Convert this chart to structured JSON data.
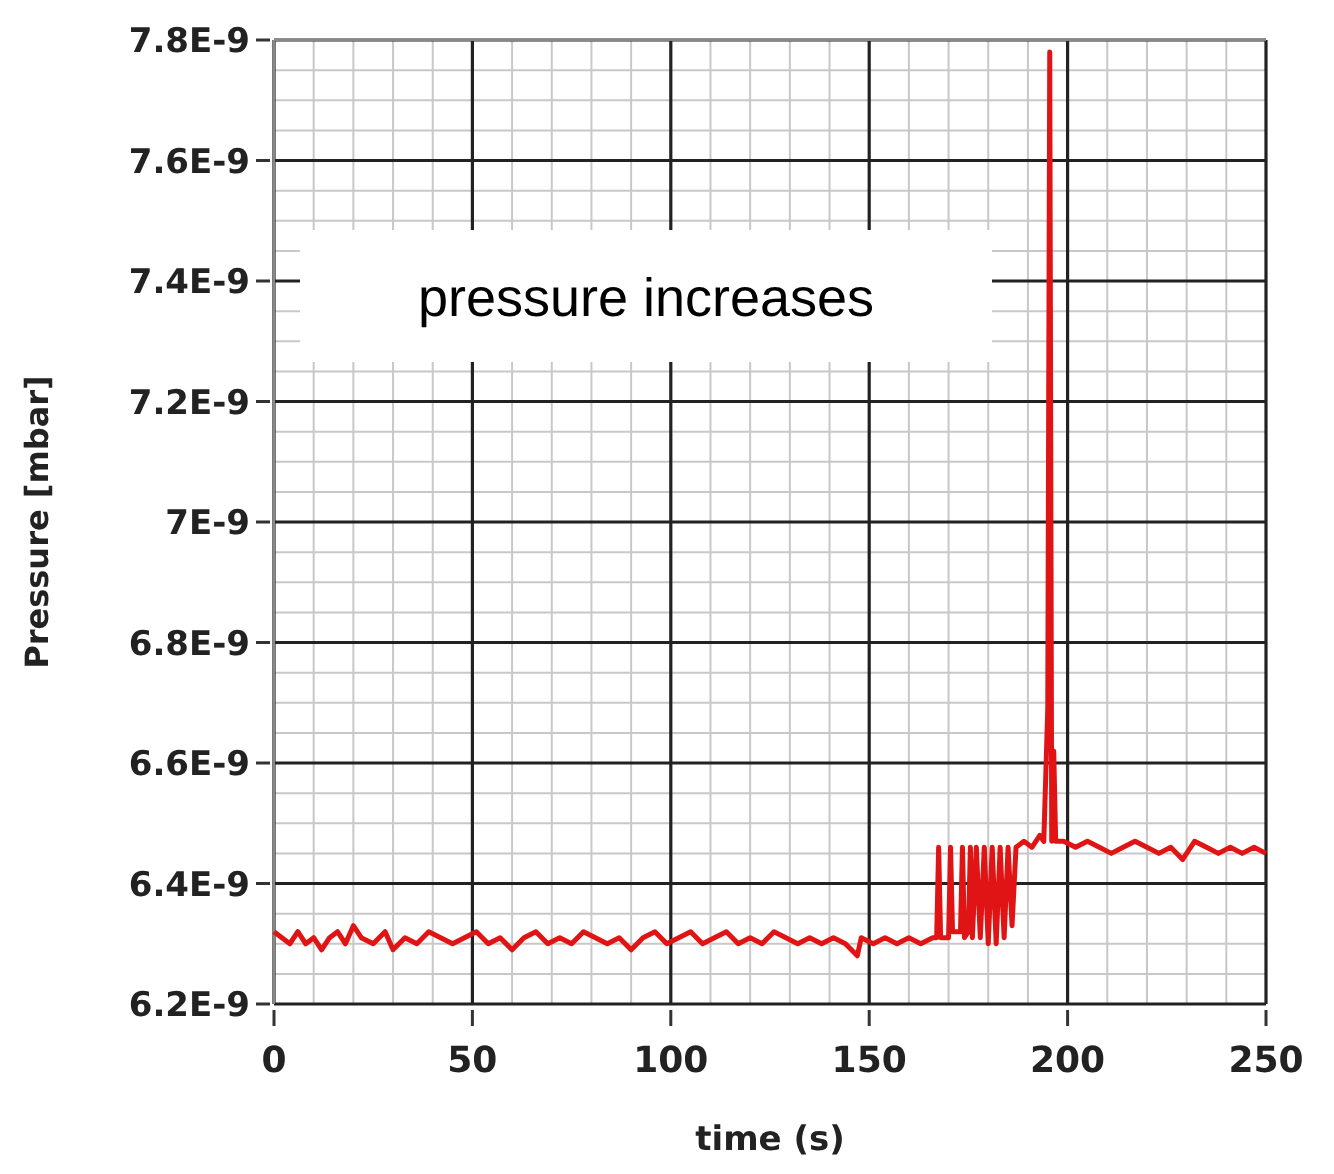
{
  "chart_data": {
    "type": "line",
    "xlabel": "time (s)",
    "ylabel": "Pressure [mbar]",
    "annotations": [
      "pressure increases"
    ],
    "xlim": [
      0,
      250
    ],
    "xticks": [
      0,
      50,
      100,
      150,
      200,
      250
    ],
    "ylim": [
      6.2e-09,
      7.8e-09
    ],
    "yticks": [
      {
        "value": 6.2e-09,
        "label": "6.2E-9"
      },
      {
        "value": 6.4e-09,
        "label": "6.4E-9"
      },
      {
        "value": 6.6e-09,
        "label": "6.6E-9"
      },
      {
        "value": 6.8e-09,
        "label": "6.8E-9"
      },
      {
        "value": 7e-09,
        "label": "7E-9"
      },
      {
        "value": 7.2e-09,
        "label": "7.2E-9"
      },
      {
        "value": 7.4e-09,
        "label": "7.4E-9"
      },
      {
        "value": 7.6e-09,
        "label": "7.6E-9"
      },
      {
        "value": 7.8e-09,
        "label": "7.8E-9"
      }
    ],
    "grid": true,
    "marker": "none",
    "line_style": "solid",
    "x": [
      0,
      2,
      4,
      6,
      8,
      10,
      12,
      14,
      16,
      18,
      20,
      22,
      25,
      28,
      30,
      33,
      36,
      39,
      42,
      45,
      48,
      51,
      54,
      57,
      60,
      63,
      66,
      69,
      72,
      75,
      78,
      81,
      84,
      87,
      90,
      93,
      96,
      99,
      102,
      105,
      108,
      111,
      114,
      117,
      120,
      123,
      126,
      129,
      132,
      135,
      138,
      141,
      144,
      147,
      148,
      151,
      154,
      157,
      160,
      163,
      166,
      167,
      167.5,
      168,
      170,
      170.5,
      171,
      173,
      173.5,
      174,
      175,
      175.5,
      176,
      177,
      178,
      179,
      180,
      181,
      182,
      183,
      184,
      185,
      186,
      187,
      189,
      191,
      193,
      194,
      195,
      195.5,
      196,
      196.5,
      197,
      199,
      202,
      205,
      208,
      211,
      214,
      217,
      220,
      223,
      226,
      229,
      232,
      235,
      238,
      241,
      244,
      247,
      250
    ],
    "series": [
      {
        "color": "#e01414",
        "values": [
          6.32e-09,
          6.31e-09,
          6.3e-09,
          6.32e-09,
          6.3e-09,
          6.31e-09,
          6.29e-09,
          6.31e-09,
          6.32e-09,
          6.3e-09,
          6.33e-09,
          6.31e-09,
          6.3e-09,
          6.32e-09,
          6.29e-09,
          6.31e-09,
          6.3e-09,
          6.32e-09,
          6.31e-09,
          6.3e-09,
          6.31e-09,
          6.32e-09,
          6.3e-09,
          6.31e-09,
          6.29e-09,
          6.31e-09,
          6.32e-09,
          6.3e-09,
          6.31e-09,
          6.3e-09,
          6.32e-09,
          6.31e-09,
          6.3e-09,
          6.31e-09,
          6.29e-09,
          6.31e-09,
          6.32e-09,
          6.3e-09,
          6.31e-09,
          6.32e-09,
          6.3e-09,
          6.31e-09,
          6.32e-09,
          6.3e-09,
          6.31e-09,
          6.3e-09,
          6.32e-09,
          6.31e-09,
          6.3e-09,
          6.31e-09,
          6.3e-09,
          6.31e-09,
          6.3e-09,
          6.28e-09,
          6.31e-09,
          6.3e-09,
          6.31e-09,
          6.3e-09,
          6.31e-09,
          6.3e-09,
          6.31e-09,
          6.31e-09,
          6.46e-09,
          6.31e-09,
          6.31e-09,
          6.46e-09,
          6.32e-09,
          6.32e-09,
          6.46e-09,
          6.31e-09,
          6.32e-09,
          6.46e-09,
          6.31e-09,
          6.46e-09,
          6.31e-09,
          6.46e-09,
          6.3e-09,
          6.46e-09,
          6.3e-09,
          6.46e-09,
          6.31e-09,
          6.46e-09,
          6.33e-09,
          6.46e-09,
          6.47e-09,
          6.46e-09,
          6.48e-09,
          6.47e-09,
          6.69e-09,
          7.78e-09,
          6.47e-09,
          6.62e-09,
          6.47e-09,
          6.47e-09,
          6.46e-09,
          6.47e-09,
          6.46e-09,
          6.45e-09,
          6.46e-09,
          6.47e-09,
          6.46e-09,
          6.45e-09,
          6.46e-09,
          6.44e-09,
          6.47e-09,
          6.46e-09,
          6.45e-09,
          6.46e-09,
          6.45e-09,
          6.46e-09,
          6.45e-09
        ]
      }
    ]
  }
}
